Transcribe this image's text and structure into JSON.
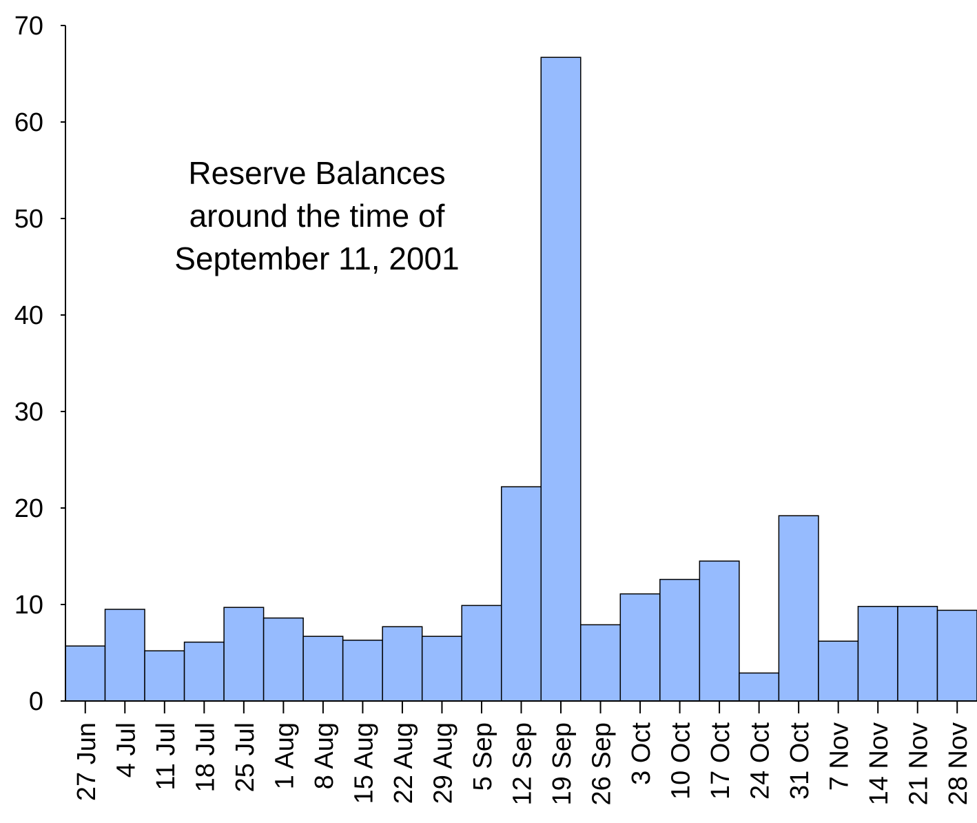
{
  "colors": {
    "bar_fill": "#96BBFE",
    "bar_stroke": "#000000",
    "axis": "#000000",
    "background": "#FFFFFF"
  },
  "chart_data": {
    "type": "bar",
    "title_lines": [
      "Reserve Balances",
      "around the time of",
      "September 11, 2001"
    ],
    "xlabel": "",
    "ylabel": "",
    "categories": [
      "27 Jun",
      "4 Jul",
      "11 Jul",
      "18 Jul",
      "25 Jul",
      "1 Aug",
      "8 Aug",
      "15 Aug",
      "22 Aug",
      "29 Aug",
      "5 Sep",
      "12 Sep",
      "19 Sep",
      "26 Sep",
      "3 Oct",
      "10 Oct",
      "17 Oct",
      "24 Oct",
      "31 Oct",
      "7 Nov",
      "14 Nov",
      "21 Nov",
      "28 Nov"
    ],
    "values": [
      5.7,
      9.5,
      5.2,
      6.1,
      9.7,
      8.6,
      6.7,
      6.3,
      7.7,
      6.7,
      9.9,
      22.2,
      66.7,
      7.9,
      11.1,
      12.6,
      14.5,
      2.9,
      19.2,
      6.2,
      9.8,
      9.8,
      9.4
    ],
    "ylim": [
      0,
      70
    ],
    "yticks": [
      0,
      10,
      20,
      30,
      40,
      50,
      60,
      70
    ],
    "grid": false,
    "legend": "none"
  }
}
